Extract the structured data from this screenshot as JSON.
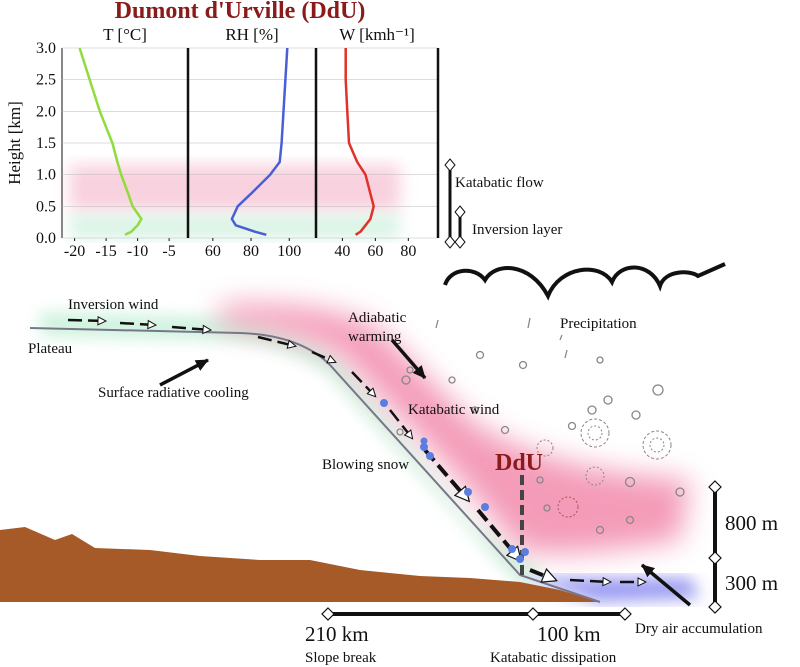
{
  "title": "Dumont d'Urville (DdU)",
  "chart_data": [
    {
      "type": "line",
      "xlabel": "T [°C]",
      "ylabel": "Height [km]",
      "xlim": [
        -22,
        -2
      ],
      "xticks": [
        -20,
        -15,
        -10,
        -5
      ],
      "ylim": [
        0,
        3
      ],
      "yticks": [
        {
          "value": 0,
          "label": "0.0"
        },
        {
          "value": 0.5,
          "label": "0.5"
        },
        {
          "value": 1,
          "label": "1.0"
        },
        {
          "value": 1.5,
          "label": "1.5"
        },
        {
          "value": 2,
          "label": "2.0"
        },
        {
          "value": 2.5,
          "label": "2.5"
        },
        {
          "value": 3,
          "label": "3.0"
        }
      ],
      "series": [
        {
          "color": "#8fdc3c",
          "x": [
            -12,
            -11,
            -10,
            -9.4,
            -10.8,
            -11.5,
            -12.6,
            -13.2,
            -14,
            -16,
            -17.6,
            -19.2
          ],
          "values": [
            0.05,
            0.1,
            0.2,
            0.3,
            0.5,
            0.7,
            1.0,
            1.2,
            1.5,
            2.0,
            2.5,
            3.0
          ]
        }
      ]
    },
    {
      "type": "line",
      "xlabel": "RH [%]",
      "xlim": [
        47,
        114
      ],
      "xticks": [
        60,
        80,
        100
      ],
      "ylim": [
        0,
        3
      ],
      "series": [
        {
          "color": "#4a5fd6",
          "x": [
            88,
            82,
            72,
            70,
            73,
            80,
            90,
            95,
            96,
            97,
            98,
            99
          ],
          "values": [
            0.05,
            0.1,
            0.2,
            0.3,
            0.5,
            0.7,
            1.0,
            1.2,
            1.5,
            2.0,
            2.5,
            3.0
          ]
        }
      ]
    },
    {
      "type": "line",
      "xlabel": "W [kmh⁻¹]",
      "xlim": [
        24,
        98
      ],
      "xticks": [
        40,
        60,
        80
      ],
      "ylim": [
        0,
        3
      ],
      "series": [
        {
          "color": "#e03228",
          "x": [
            48,
            51,
            54,
            57,
            59,
            57,
            54,
            49,
            44,
            43,
            42,
            42
          ],
          "values": [
            0.05,
            0.1,
            0.2,
            0.3,
            0.5,
            0.7,
            1.0,
            1.2,
            1.5,
            2.0,
            2.5,
            3.0
          ]
        }
      ]
    }
  ],
  "diagram": {
    "labels": [
      "Katabatic flow",
      "Inversion layer",
      "Inversion wind",
      "Plateau",
      "Surface radiative cooling",
      "Adiabatic",
      "warming",
      "Katabatic wind",
      "Blowing snow",
      "DdU",
      "Precipitation",
      "800 m",
      "300 m",
      "Dry air accumulation",
      "210 km",
      "Slope break",
      "100 km",
      "Katabatic dissipation"
    ]
  }
}
